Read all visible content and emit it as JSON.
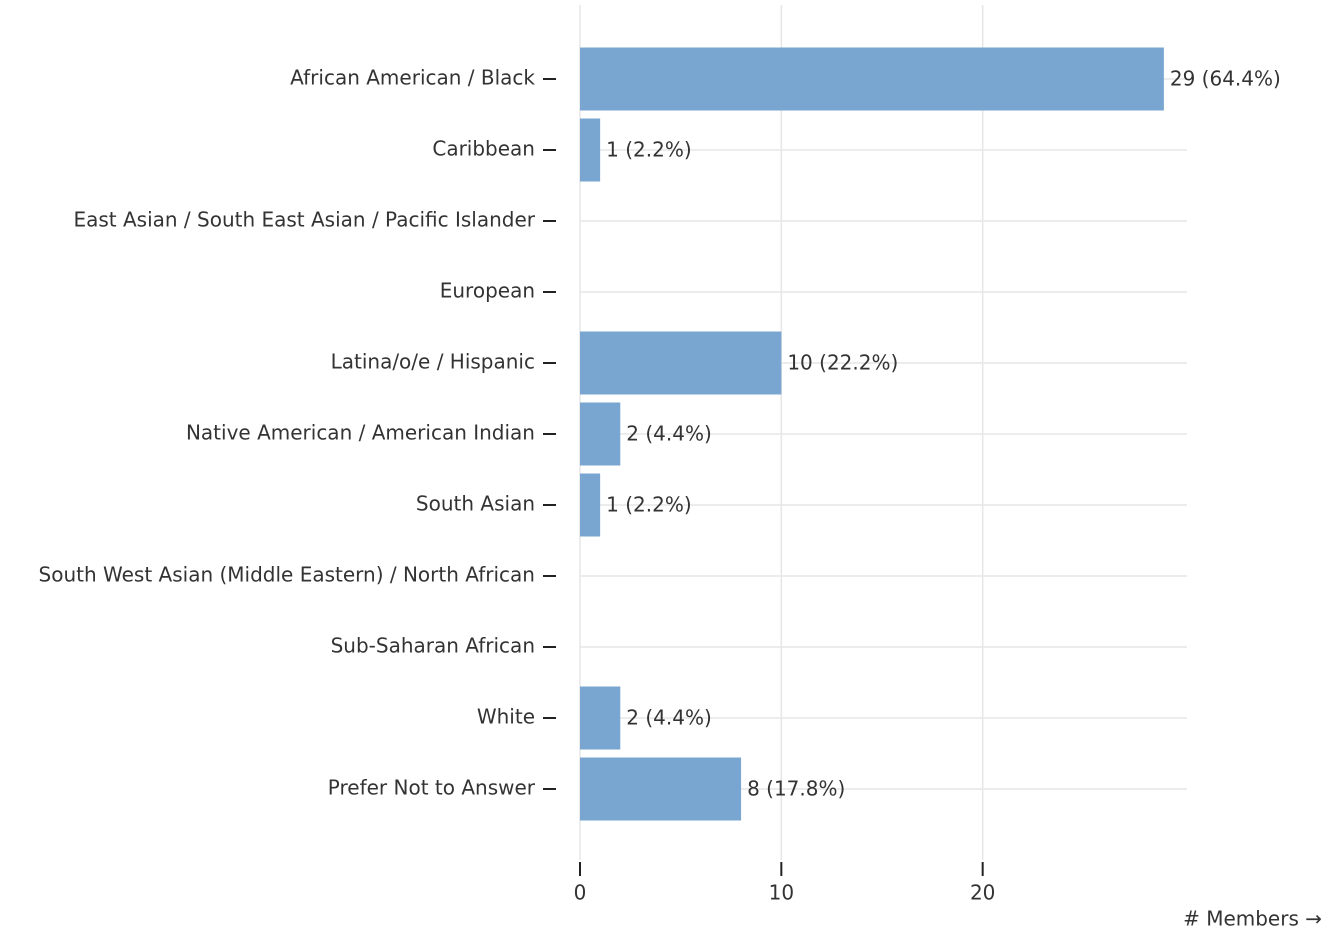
{
  "chart_data": {
    "type": "bar",
    "orientation": "horizontal",
    "categories": [
      "African American / Black",
      "Caribbean",
      "East Asian / South East Asian / Pacific Islander",
      "European",
      "Latina/o/e / Hispanic",
      "Native American / American Indian",
      "South Asian",
      "South West Asian (Middle Eastern) / North African",
      "Sub-Saharan African",
      "White",
      "Prefer Not to Answer"
    ],
    "values": [
      29,
      1,
      0,
      0,
      10,
      2,
      1,
      0,
      0,
      2,
      8
    ],
    "value_labels": [
      "29 (64.4%)",
      "1 (2.2%)",
      null,
      null,
      "10 (22.2%)",
      "2 (4.4%)",
      "1 (2.2%)",
      null,
      null,
      "2 (4.4%)",
      "8 (17.8%)"
    ],
    "color": "#78a6d0",
    "x_label": "# Members →",
    "xlim": [
      0,
      30
    ],
    "xticks": [
      0,
      10,
      20
    ],
    "grid": true
  }
}
